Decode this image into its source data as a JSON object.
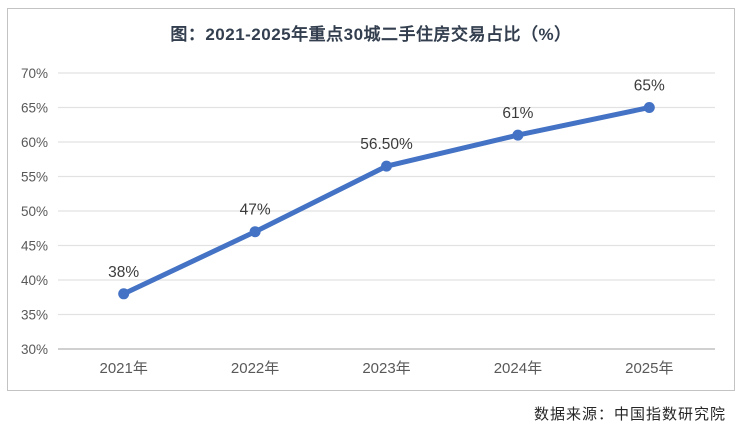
{
  "title": "图：2021-2025年重点30城二手住房交易占比（%）",
  "source": "数据来源：中国指数研究院",
  "colors": {
    "line": "#4472C4",
    "title_text": "#333F4F",
    "axis_text": "#595959",
    "label_text": "#3B3B3B",
    "gridline": "#E2E2E2",
    "axis_line": "#B3B3B3",
    "border": "#C3C3C3"
  },
  "chart_data": {
    "type": "line",
    "title": "图：2021-2025年重点30城二手住房交易占比（%）",
    "categories": [
      "2021年",
      "2022年",
      "2023年",
      "2024年",
      "2025年"
    ],
    "values": [
      38,
      47,
      56.5,
      61,
      65
    ],
    "data_labels": [
      "38%",
      "47%",
      "56.50%",
      "61%",
      "65%"
    ],
    "ylim": [
      30,
      70
    ],
    "ytick_values": [
      30,
      35,
      40,
      45,
      50,
      55,
      60,
      65,
      70
    ],
    "ytick_labels": [
      "30%",
      "35%",
      "40%",
      "45%",
      "50%",
      "55%",
      "60%",
      "65%",
      "70%"
    ],
    "xlabel": "",
    "ylabel": "",
    "grid": true,
    "legend": false,
    "line_color": "#4472C4",
    "marker": "circle",
    "source": "数据来源：中国指数研究院"
  }
}
